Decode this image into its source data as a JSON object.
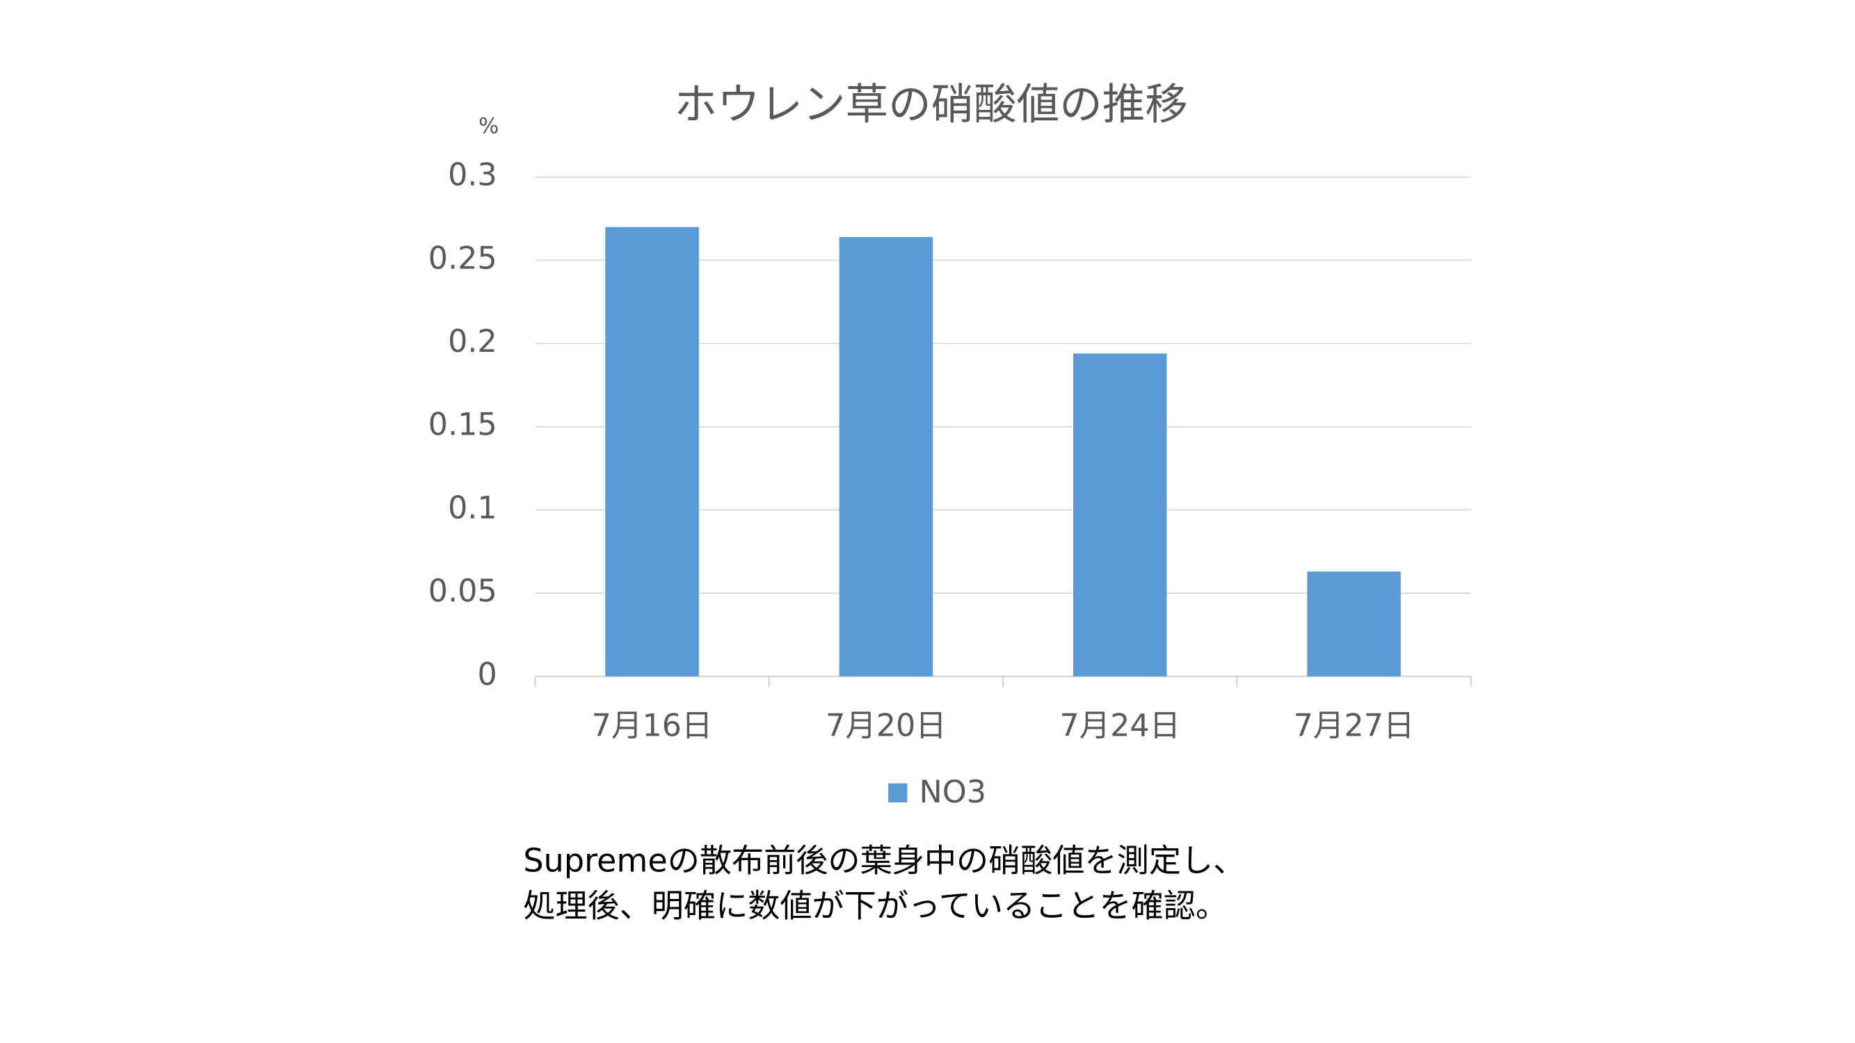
{
  "chart_data": {
    "type": "bar",
    "title": "ホウレン草の硝酸値の推移",
    "y_label": "%",
    "categories": [
      "7月16日",
      "7月20日",
      "7月24日",
      "7月27日"
    ],
    "series": [
      {
        "name": "NO3",
        "color": "#5b9bd5",
        "values": [
          0.27,
          0.264,
          0.194,
          0.063
        ]
      }
    ],
    "ylim": [
      0,
      0.3
    ],
    "yticks": [
      0,
      0.05,
      0.1,
      0.15,
      0.2,
      0.25,
      0.3
    ],
    "grid": true,
    "legend": "bottom",
    "caption": [
      "Supremeの散布前後の葉身中の硝酸値を測定し、",
      "処理後、明確に数値が下がっていることを確認。"
    ]
  }
}
